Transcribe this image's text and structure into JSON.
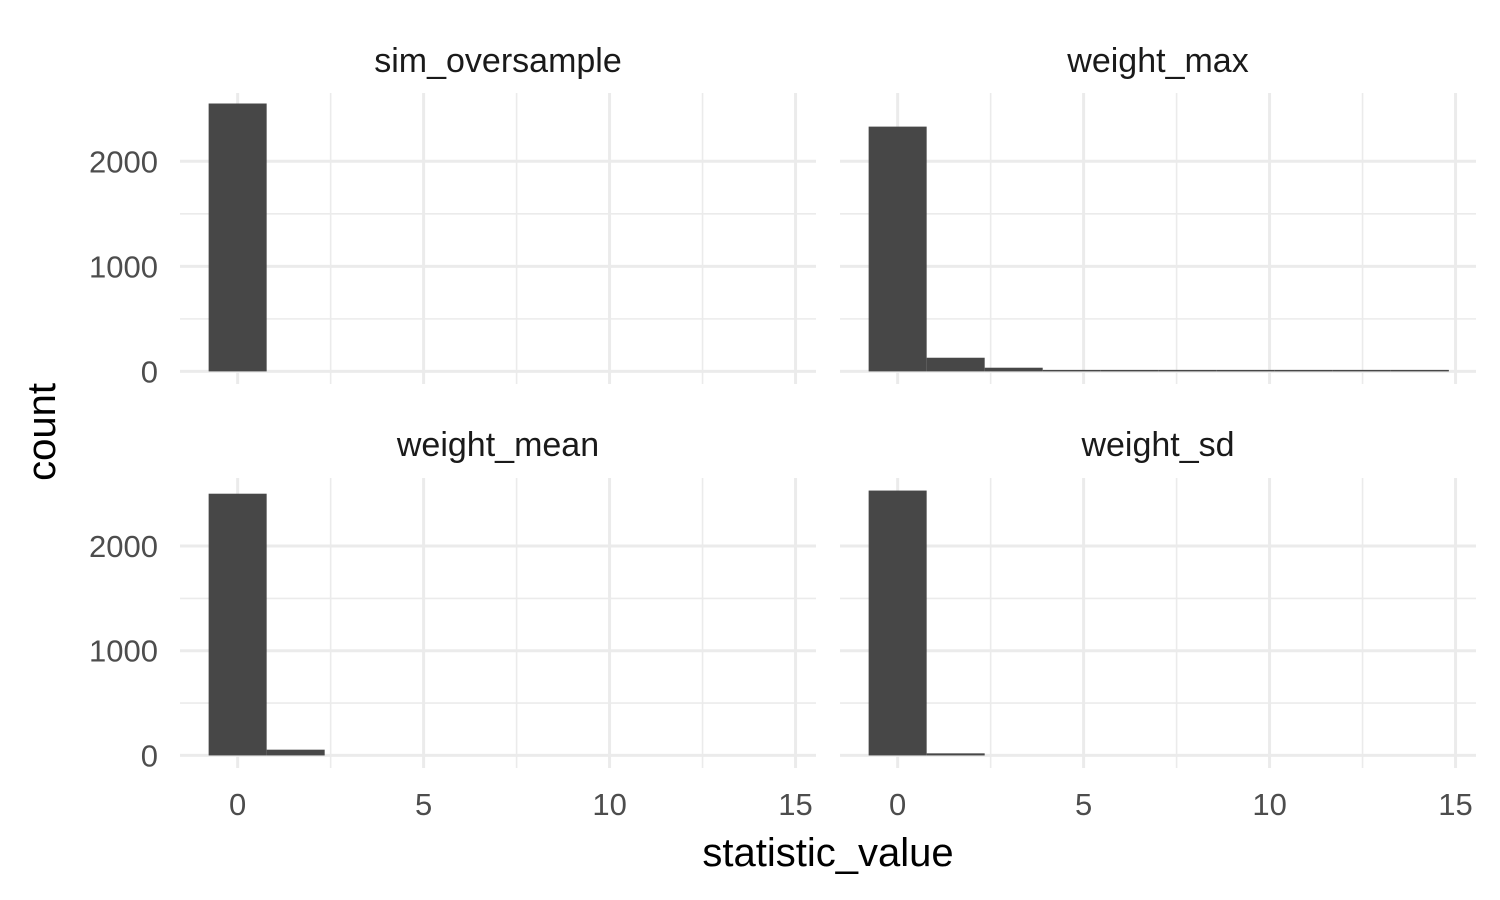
{
  "chart_data": {
    "type": "bar",
    "subtype": "faceted-histogram",
    "xlabel": "statistic_value",
    "ylabel": "count",
    "xlim": [
      -1.55,
      15.55
    ],
    "ylim": [
      -120,
      2650
    ],
    "x_ticks": [
      0,
      5,
      10,
      15
    ],
    "y_ticks": [
      0,
      1000,
      2000
    ],
    "bin_width": 1.56,
    "grid": true,
    "bar_color": "#474747",
    "grid_color": "#ebebeb",
    "facets": [
      {
        "name": "sim_oversample",
        "bins": [
          {
            "x": 0.0,
            "count": 2550
          }
        ]
      },
      {
        "name": "weight_max",
        "bins": [
          {
            "x": 0.0,
            "count": 2330
          },
          {
            "x": 1.56,
            "count": 130
          },
          {
            "x": 3.12,
            "count": 35
          },
          {
            "x": 4.68,
            "count": 8
          },
          {
            "x": 6.24,
            "count": 5
          },
          {
            "x": 7.8,
            "count": 4
          },
          {
            "x": 9.36,
            "count": 3
          },
          {
            "x": 10.92,
            "count": 1
          },
          {
            "x": 12.48,
            "count": 1
          },
          {
            "x": 14.04,
            "count": 2
          }
        ]
      },
      {
        "name": "weight_mean",
        "bins": [
          {
            "x": 0.0,
            "count": 2500
          },
          {
            "x": 1.56,
            "count": 55
          }
        ]
      },
      {
        "name": "weight_sd",
        "bins": [
          {
            "x": 0.0,
            "count": 2530
          },
          {
            "x": 1.56,
            "count": 20
          }
        ]
      }
    ]
  }
}
